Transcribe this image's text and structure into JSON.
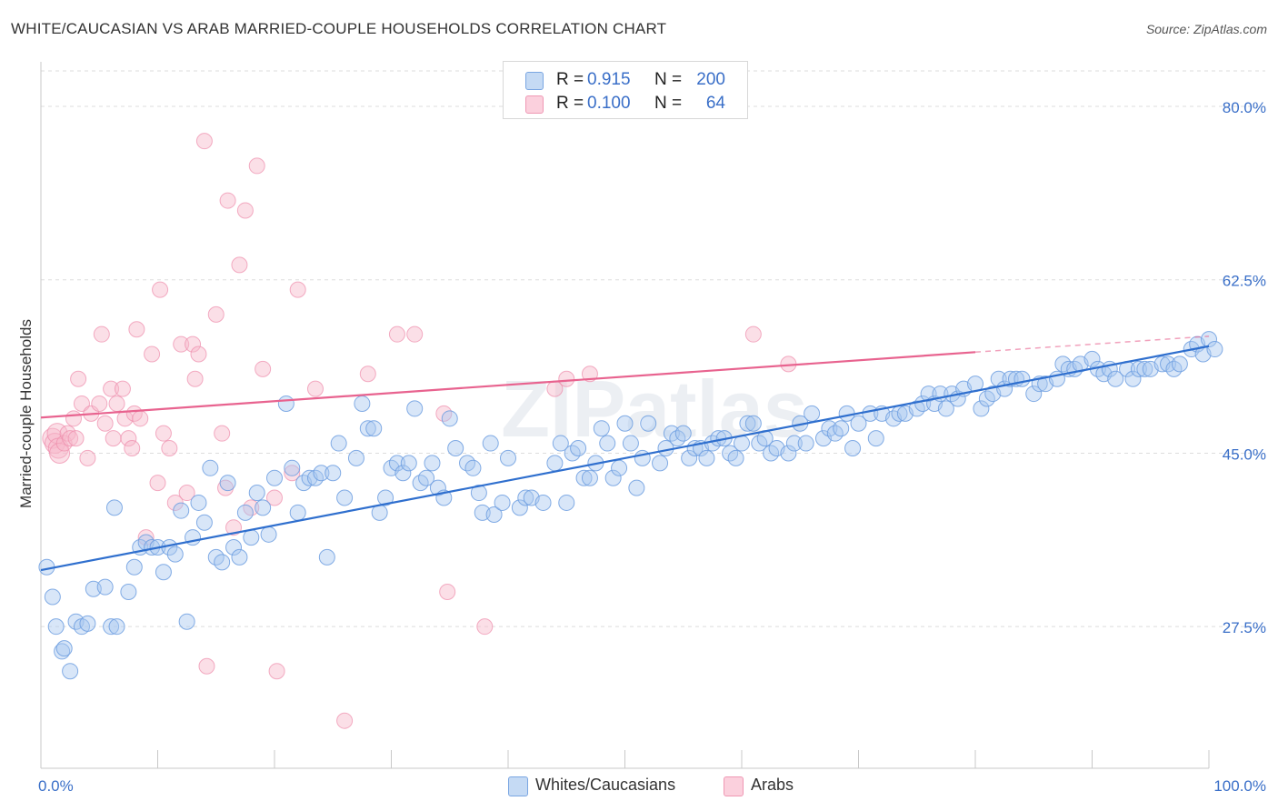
{
  "title": "WHITE/CAUCASIAN VS ARAB MARRIED-COUPLE HOUSEHOLDS CORRELATION CHART",
  "source": "Source: ZipAtlas.com",
  "watermark": "ZIPatlas",
  "legend_top": {
    "rows": [
      {
        "r_label": "R =",
        "r_value": "0.915",
        "n_label": "N =",
        "n_value": "200",
        "color": "#a9c8ef"
      },
      {
        "r_label": "R =",
        "r_value": "0.100",
        "n_label": "N =",
        "n_value": "64",
        "color": "#f6b7ca"
      }
    ]
  },
  "legend_bottom": [
    {
      "label": "Whites/Caucasians",
      "color": "#a9c8ef"
    },
    {
      "label": "Arabs",
      "color": "#f6b7ca"
    }
  ],
  "colors": {
    "blue_fill": "#a9c8ef",
    "blue_stroke": "#6f9fe0",
    "blue_line": "#2f6fce",
    "pink_fill": "#f6b7ca",
    "pink_stroke": "#ee8cab",
    "pink_line": "#e8638f",
    "tick_label": "#3a6fc8",
    "grid": "#dddddd"
  },
  "chart_data": {
    "type": "scatter",
    "title": "WHITE/CAUCASIAN VS ARAB MARRIED-COUPLE HOUSEHOLDS CORRELATION CHART",
    "xlabel": "",
    "ylabel": "Married-couple Households",
    "xlim": [
      0,
      100
    ],
    "ylim": [
      13.2,
      84.5
    ],
    "x_tick_labels": [
      "0.0%",
      "100.0%"
    ],
    "y_ticks": [
      27.5,
      45.0,
      62.5,
      80.0
    ],
    "y_tick_labels": [
      "27.5%",
      "45.0%",
      "62.5%",
      "80.0%"
    ],
    "grid": true,
    "legend_position": "top-center",
    "series": [
      {
        "name": "Whites/Caucasians",
        "trend": {
          "x": [
            0,
            100
          ],
          "y": [
            33.2,
            55.8
          ]
        },
        "points": [
          [
            0.5,
            33.5
          ],
          [
            1,
            30.5
          ],
          [
            1.3,
            27.5
          ],
          [
            1.8,
            25
          ],
          [
            2,
            25.3
          ],
          [
            2.5,
            23
          ],
          [
            3,
            28
          ],
          [
            3.5,
            27.5
          ],
          [
            4,
            27.8
          ],
          [
            4.5,
            31.3
          ],
          [
            5.5,
            31.5
          ],
          [
            6,
            27.5
          ],
          [
            6.5,
            27.5
          ],
          [
            6.3,
            39.5
          ],
          [
            7.5,
            31
          ],
          [
            8,
            33.5
          ],
          [
            8.5,
            35.5
          ],
          [
            9,
            36
          ],
          [
            9.5,
            35.5
          ],
          [
            10,
            35.5
          ],
          [
            10.5,
            33
          ],
          [
            11,
            35.5
          ],
          [
            11.5,
            34.8
          ],
          [
            12,
            39.2
          ],
          [
            12.5,
            28
          ],
          [
            13,
            36.5
          ],
          [
            13.5,
            40
          ],
          [
            14,
            38
          ],
          [
            14.5,
            43.5
          ],
          [
            15,
            34.5
          ],
          [
            15.5,
            34
          ],
          [
            16,
            42
          ],
          [
            16.5,
            35.5
          ],
          [
            17,
            34.5
          ],
          [
            17.5,
            39
          ],
          [
            18,
            36.5
          ],
          [
            18.5,
            41
          ],
          [
            19,
            39.5
          ],
          [
            19.5,
            36.8
          ],
          [
            20,
            42.5
          ],
          [
            21,
            50
          ],
          [
            21.5,
            43.5
          ],
          [
            22,
            39
          ],
          [
            22.5,
            42
          ],
          [
            23,
            42.5
          ],
          [
            23.5,
            42.5
          ],
          [
            24,
            43
          ],
          [
            24.5,
            34.5
          ],
          [
            25,
            43
          ],
          [
            25.5,
            46
          ],
          [
            26,
            40.5
          ],
          [
            27,
            44.5
          ],
          [
            27.5,
            50
          ],
          [
            28,
            47.5
          ],
          [
            28.5,
            47.5
          ],
          [
            29,
            39
          ],
          [
            29.5,
            40.5
          ],
          [
            30,
            43.5
          ],
          [
            30.5,
            44
          ],
          [
            31,
            43
          ],
          [
            31.5,
            44
          ],
          [
            32,
            49.5
          ],
          [
            32.5,
            42
          ],
          [
            33,
            42.5
          ],
          [
            33.5,
            44
          ],
          [
            34,
            41.5
          ],
          [
            34.5,
            40.5
          ],
          [
            35,
            48.5
          ],
          [
            35.5,
            45.5
          ],
          [
            36.5,
            44
          ],
          [
            37,
            43.5
          ],
          [
            37.5,
            41
          ],
          [
            37.8,
            39
          ],
          [
            38.5,
            46
          ],
          [
            38.8,
            38.8
          ],
          [
            39.5,
            40
          ],
          [
            40,
            44.5
          ],
          [
            41,
            39.5
          ],
          [
            41.5,
            40.5
          ],
          [
            42,
            40.5
          ],
          [
            43,
            40
          ],
          [
            44,
            44
          ],
          [
            44.5,
            46
          ],
          [
            45,
            40
          ],
          [
            45.5,
            45
          ],
          [
            46,
            45.5
          ],
          [
            46.5,
            42.5
          ],
          [
            47,
            42.5
          ],
          [
            47.5,
            44
          ],
          [
            48,
            47.5
          ],
          [
            48.5,
            46
          ],
          [
            49,
            42.5
          ],
          [
            49.5,
            43.5
          ],
          [
            50,
            48
          ],
          [
            50.5,
            46
          ],
          [
            51,
            41.5
          ],
          [
            51.5,
            44.5
          ],
          [
            52,
            48
          ],
          [
            53,
            44
          ],
          [
            53.5,
            45.5
          ],
          [
            54,
            47
          ],
          [
            54.5,
            46.5
          ],
          [
            55,
            47
          ],
          [
            55.5,
            44.5
          ],
          [
            56,
            45.5
          ],
          [
            56.5,
            45.5
          ],
          [
            57,
            44.5
          ],
          [
            57.5,
            46
          ],
          [
            58,
            46.5
          ],
          [
            58.5,
            46.5
          ],
          [
            59,
            45
          ],
          [
            59.5,
            44.5
          ],
          [
            60,
            46
          ],
          [
            60.5,
            48
          ],
          [
            61,
            48
          ],
          [
            61.5,
            46
          ],
          [
            62,
            46.5
          ],
          [
            62.5,
            45
          ],
          [
            63,
            45.5
          ],
          [
            64,
            45
          ],
          [
            64.5,
            46
          ],
          [
            65,
            48
          ],
          [
            65.5,
            46
          ],
          [
            66,
            49
          ],
          [
            67,
            46.5
          ],
          [
            67.5,
            47.5
          ],
          [
            68,
            47
          ],
          [
            68.5,
            47.5
          ],
          [
            69,
            49
          ],
          [
            69.5,
            45.5
          ],
          [
            70,
            48
          ],
          [
            71,
            49
          ],
          [
            71.5,
            46.5
          ],
          [
            72,
            49
          ],
          [
            73,
            48.5
          ],
          [
            73.5,
            49
          ],
          [
            74,
            49
          ],
          [
            75,
            49.5
          ],
          [
            75.5,
            50
          ],
          [
            76,
            51
          ],
          [
            76.5,
            50
          ],
          [
            77,
            51
          ],
          [
            77.5,
            49.5
          ],
          [
            78,
            51
          ],
          [
            78.5,
            50.5
          ],
          [
            79,
            51.5
          ],
          [
            80,
            52
          ],
          [
            80.5,
            49.5
          ],
          [
            81,
            50.5
          ],
          [
            81.5,
            51
          ],
          [
            82,
            52.5
          ],
          [
            82.5,
            51.5
          ],
          [
            83,
            52.5
          ],
          [
            83.5,
            52.5
          ],
          [
            84,
            52.5
          ],
          [
            85,
            51
          ],
          [
            85.5,
            52
          ],
          [
            86,
            52
          ],
          [
            87,
            52.5
          ],
          [
            87.5,
            54
          ],
          [
            88,
            53.5
          ],
          [
            88.5,
            53.5
          ],
          [
            89,
            54
          ],
          [
            90,
            54.5
          ],
          [
            90.5,
            53.5
          ],
          [
            91,
            53
          ],
          [
            91.5,
            53.5
          ],
          [
            92,
            52.5
          ],
          [
            93,
            53.5
          ],
          [
            93.5,
            52.5
          ],
          [
            94,
            53.5
          ],
          [
            94.5,
            53.5
          ],
          [
            95,
            53.5
          ],
          [
            96,
            54
          ],
          [
            96.5,
            54
          ],
          [
            97,
            53.5
          ],
          [
            97.5,
            54
          ],
          [
            98.5,
            55.5
          ],
          [
            99,
            56
          ],
          [
            99.5,
            55
          ],
          [
            100,
            56.5
          ],
          [
            100.5,
            55.5
          ]
        ]
      },
      {
        "name": "Arabs",
        "trend": {
          "x": [
            0,
            80
          ],
          "y": [
            48.6,
            55.2
          ],
          "dashed_to": {
            "x": 100,
            "y": 56.8
          }
        },
        "points": [
          [
            1,
            46.5
          ],
          [
            1.2,
            46
          ],
          [
            1.4,
            47
          ],
          [
            1.5,
            45.5
          ],
          [
            1.6,
            45
          ],
          [
            2,
            46
          ],
          [
            2.3,
            47
          ],
          [
            2.5,
            46.5
          ],
          [
            2.8,
            48.5
          ],
          [
            3,
            46.5
          ],
          [
            3.2,
            52.5
          ],
          [
            3.5,
            50
          ],
          [
            4,
            44.5
          ],
          [
            4.3,
            49
          ],
          [
            5,
            50
          ],
          [
            5.2,
            57
          ],
          [
            5.5,
            48
          ],
          [
            6,
            51.5
          ],
          [
            6.2,
            46.5
          ],
          [
            6.5,
            50
          ],
          [
            7,
            51.5
          ],
          [
            7.2,
            48.5
          ],
          [
            7.5,
            46.5
          ],
          [
            7.8,
            45.5
          ],
          [
            8,
            49
          ],
          [
            8.2,
            57.5
          ],
          [
            8.5,
            48.5
          ],
          [
            9,
            36.5
          ],
          [
            9.5,
            55
          ],
          [
            10,
            42
          ],
          [
            10.2,
            61.5
          ],
          [
            10.5,
            47
          ],
          [
            11,
            45.5
          ],
          [
            11.5,
            40
          ],
          [
            12,
            56
          ],
          [
            12.5,
            41
          ],
          [
            13,
            56
          ],
          [
            13.2,
            52.5
          ],
          [
            13.5,
            55
          ],
          [
            14,
            76.5
          ],
          [
            14.2,
            23.5
          ],
          [
            15,
            59
          ],
          [
            15.5,
            47
          ],
          [
            15.8,
            41.5
          ],
          [
            16,
            70.5
          ],
          [
            16.5,
            37.5
          ],
          [
            17,
            64
          ],
          [
            17.5,
            69.5
          ],
          [
            18,
            39.5
          ],
          [
            18.5,
            74
          ],
          [
            19,
            53.5
          ],
          [
            20,
            40.5
          ],
          [
            20.2,
            23
          ],
          [
            21.5,
            43
          ],
          [
            22,
            61.5
          ],
          [
            23.5,
            51.5
          ],
          [
            26,
            18
          ],
          [
            28,
            53
          ],
          [
            30.5,
            57
          ],
          [
            32,
            57
          ],
          [
            34.5,
            49
          ],
          [
            34.8,
            31
          ],
          [
            38,
            27.5
          ],
          [
            44,
            51.5
          ],
          [
            45,
            52.5
          ],
          [
            47,
            53
          ],
          [
            61,
            57
          ],
          [
            64,
            54
          ]
        ]
      }
    ]
  }
}
